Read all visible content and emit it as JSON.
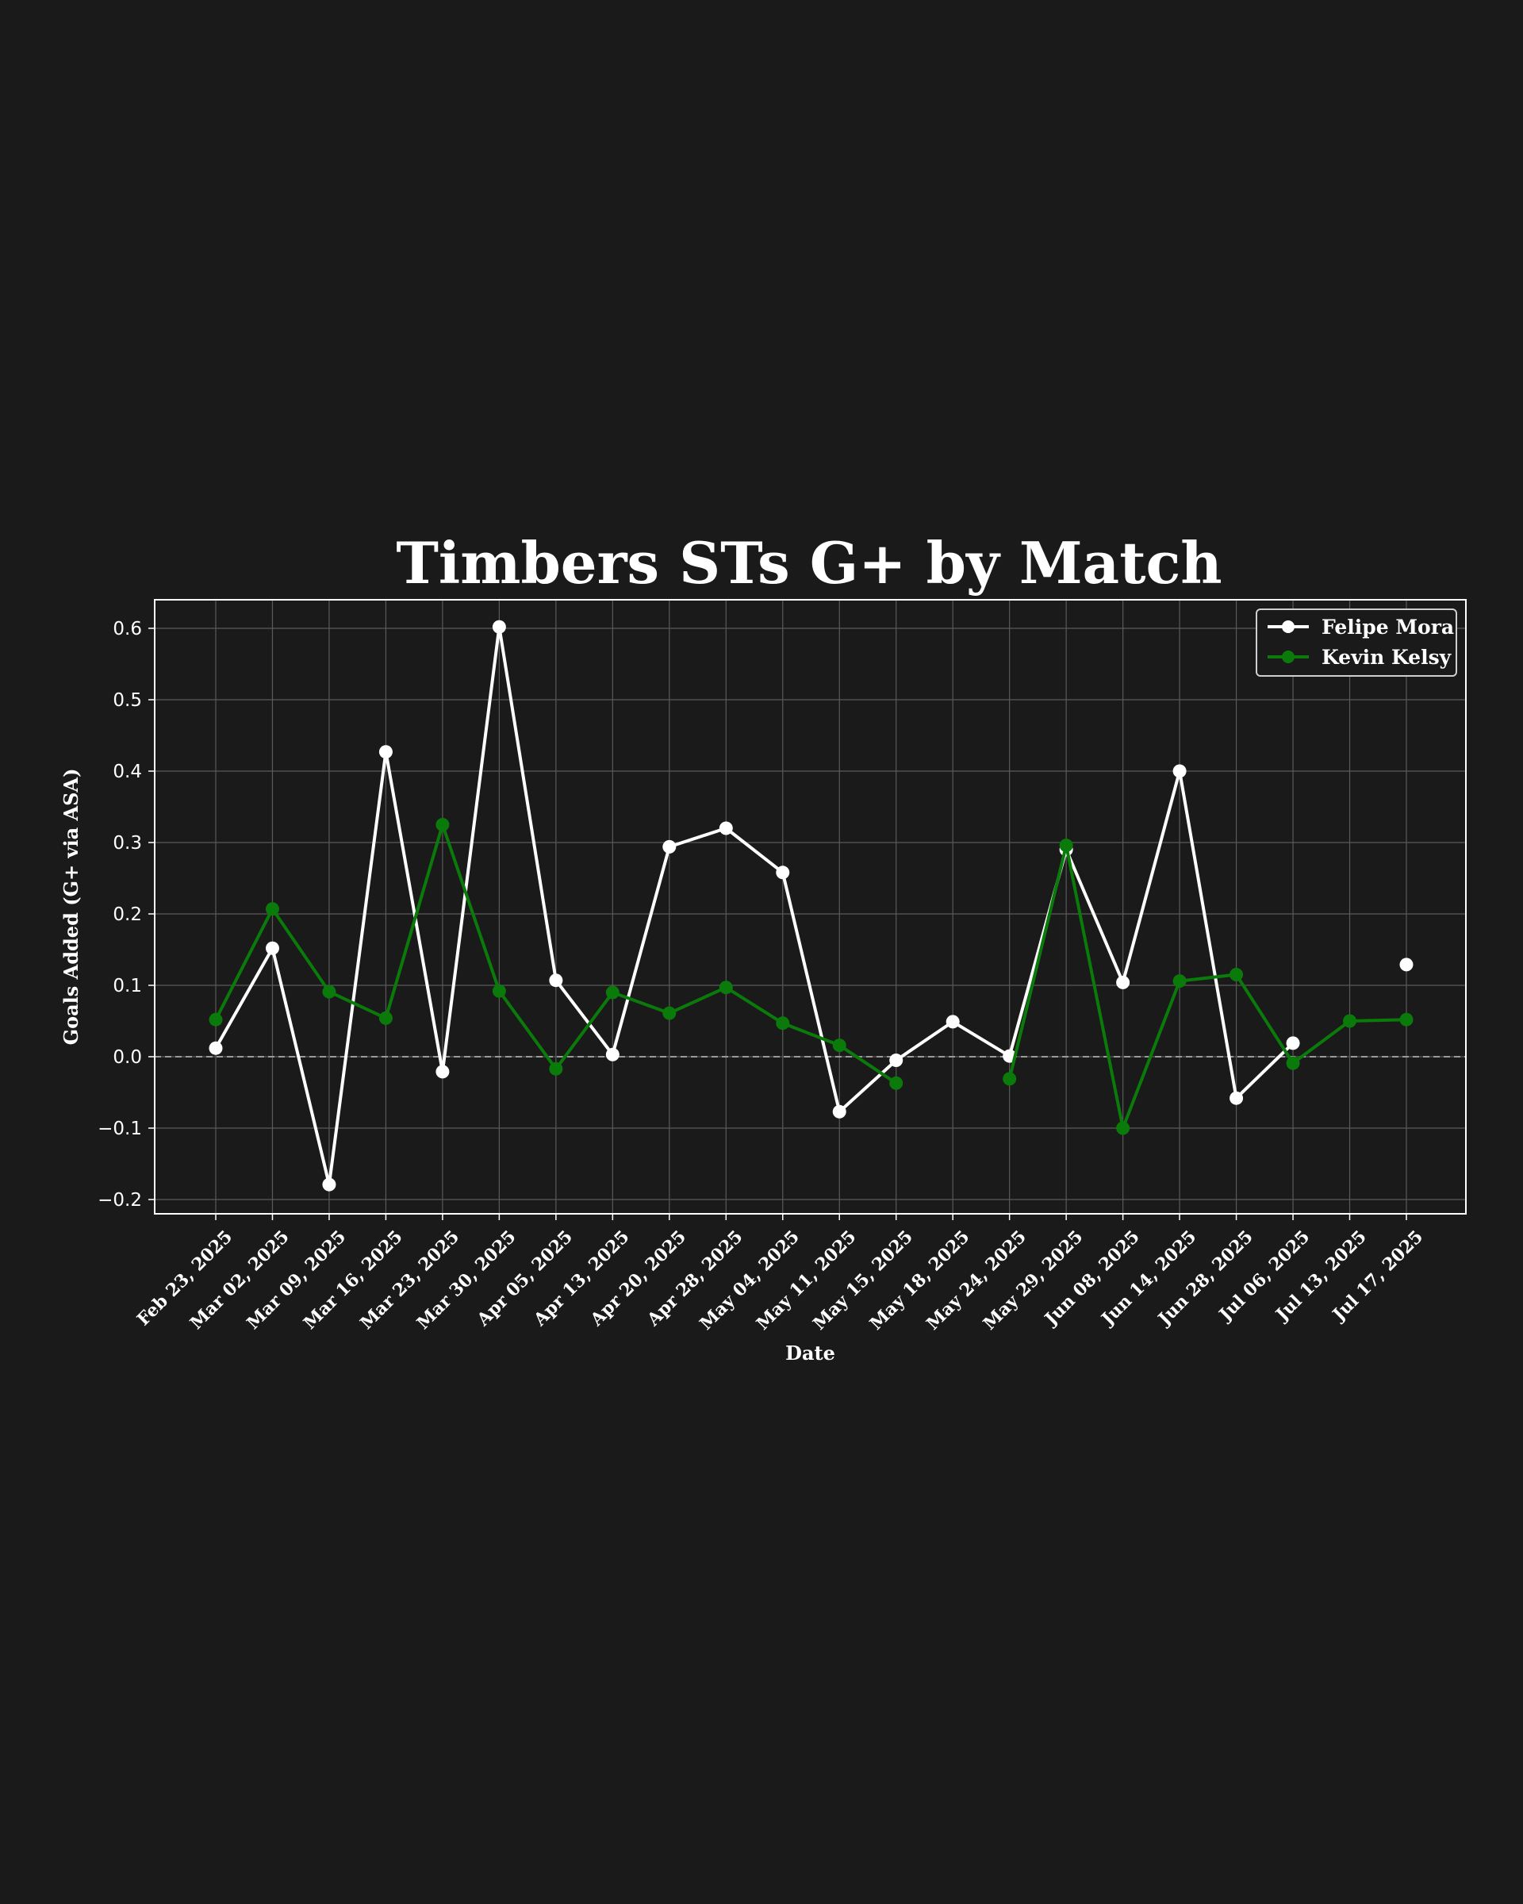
{
  "chart_data": {
    "type": "line",
    "title": "Timbers STs G+ by Match",
    "xlabel": "Date",
    "ylabel": "Goals Added (G+ via ASA)",
    "ylim": [
      -0.22,
      0.64
    ],
    "yticks": [
      -0.2,
      -0.1,
      0.0,
      0.1,
      0.2,
      0.3,
      0.4,
      0.5,
      0.6
    ],
    "ytick_labels": [
      "−0.2",
      "−0.1",
      "0.0",
      "0.1",
      "0.2",
      "0.3",
      "0.4",
      "0.5",
      "0.6"
    ],
    "grid": true,
    "legend_position": "top-right",
    "reference_line": 0.0,
    "categories": [
      "Feb 23, 2025",
      "Mar 02, 2025",
      "Mar 09, 2025",
      "Mar 16, 2025",
      "Mar 23, 2025",
      "Mar 30, 2025",
      "Apr 05, 2025",
      "Apr 13, 2025",
      "Apr 20, 2025",
      "Apr 28, 2025",
      "May 04, 2025",
      "May 11, 2025",
      "May 15, 2025",
      "May 18, 2025",
      "May 24, 2025",
      "May 29, 2025",
      "Jun 08, 2025",
      "Jun 14, 2025",
      "Jun 28, 2025",
      "Jul 06, 2025",
      "Jul 13, 2025",
      "Jul 17, 2025"
    ],
    "series": [
      {
        "name": "Felipe Mora",
        "color": "#ffffff",
        "values": [
          0.012,
          0.152,
          -0.179,
          0.427,
          -0.021,
          0.602,
          0.107,
          0.003,
          0.294,
          0.32,
          0.258,
          -0.077,
          -0.005,
          0.049,
          0.001,
          0.29,
          0.104,
          0.4,
          -0.058,
          0.019,
          null,
          0.129
        ]
      },
      {
        "name": "Kevin Kelsy",
        "color": "#0a7a0a",
        "values": [
          0.052,
          0.207,
          0.091,
          0.054,
          0.325,
          0.092,
          -0.017,
          0.09,
          0.061,
          0.097,
          0.047,
          0.016,
          -0.037,
          null,
          -0.031,
          0.296,
          -0.1,
          0.106,
          0.115,
          -0.009,
          0.05,
          0.052
        ]
      }
    ]
  }
}
